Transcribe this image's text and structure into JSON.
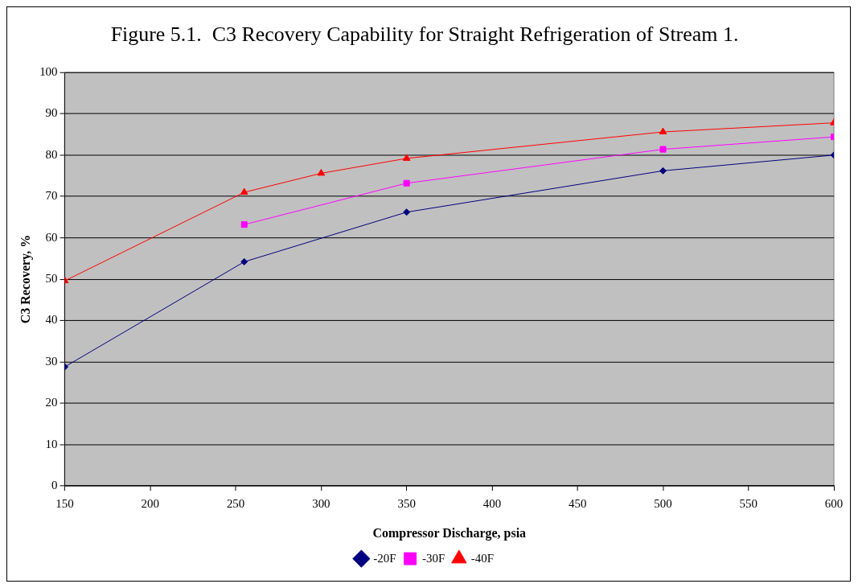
{
  "chart_data": {
    "type": "line",
    "title": "Figure 5.1.  C3 Recovery Capability for Straight Refrigeration of Stream 1.",
    "xlabel": "Compressor Discharge, psia",
    "ylabel": "C3 Recovery, %",
    "xlim": [
      150,
      600
    ],
    "xticks": [
      150,
      200,
      250,
      300,
      350,
      400,
      450,
      500,
      550,
      600
    ],
    "ylim": [
      0,
      100
    ],
    "yticks": [
      0,
      10,
      20,
      30,
      40,
      50,
      60,
      70,
      80,
      90,
      100
    ],
    "grid": "y",
    "legend": "bottom",
    "series": [
      {
        "name": "-20F",
        "color": "#000080",
        "marker": "diamond",
        "x": [
          150,
          255,
          350,
          500,
          600
        ],
        "values": [
          28.8,
          54.2,
          66.2,
          76.2,
          80
        ]
      },
      {
        "name": "-30F",
        "color": "#ff00ff",
        "marker": "square",
        "x": [
          255,
          350,
          500,
          600
        ],
        "values": [
          63.2,
          73.2,
          81.4,
          84.4
        ]
      },
      {
        "name": "-40F",
        "color": "#ff0000",
        "marker": "triangle",
        "x": [
          150,
          255,
          300,
          350,
          500,
          600
        ],
        "values": [
          49.6,
          71,
          75.6,
          79.2,
          85.6,
          87.8
        ]
      }
    ]
  }
}
